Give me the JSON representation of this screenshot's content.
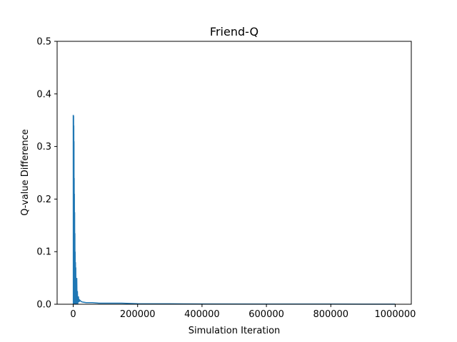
{
  "chart_data": {
    "type": "line",
    "title": "Friend-Q",
    "xlabel": "Simulation Iteration",
    "ylabel": "Q-value Difference",
    "xlim": [
      -50000,
      1050000
    ],
    "ylim": [
      0,
      0.5
    ],
    "grid": false,
    "color": "#1f77b4",
    "x_ticks": [
      0,
      200000,
      400000,
      600000,
      800000,
      1000000
    ],
    "x_tick_labels": [
      "0",
      "200000",
      "400000",
      "600000",
      "800000",
      "1000000"
    ],
    "y_ticks": [
      0.0,
      0.1,
      0.2,
      0.3,
      0.4,
      0.5
    ],
    "y_tick_labels": [
      "0.0",
      "0.1",
      "0.2",
      "0.3",
      "0.4",
      "0.5"
    ],
    "series": [
      {
        "values_note": "",
        "x": [
          0,
          300,
          600,
          900,
          1200,
          1500,
          1800,
          2100,
          2400,
          2700,
          3000,
          3300,
          3600,
          4000,
          4400,
          4800,
          5200,
          5600,
          6000,
          6500,
          7000,
          7500,
          8000,
          8500,
          9000,
          10000,
          11000,
          12000,
          13000,
          14000,
          16000,
          18000,
          20000,
          25000,
          30000,
          40000,
          60000,
          80000,
          100000,
          150000,
          200000,
          300000,
          400000,
          600000,
          800000,
          1000000
        ],
        "y": [
          0.36,
          0.0,
          0.36,
          0.0,
          0.358,
          0.0,
          0.34,
          0.0,
          0.31,
          0.0,
          0.24,
          0.0,
          0.21,
          0.0,
          0.175,
          0.0,
          0.135,
          0.0,
          0.1,
          0.0,
          0.08,
          0.0,
          0.07,
          0.0,
          0.05,
          0.0,
          0.05,
          0.0,
          0.025,
          0.0,
          0.015,
          0.004,
          0.008,
          0.005,
          0.004,
          0.003,
          0.003,
          0.002,
          0.002,
          0.002,
          0.001,
          0.0008,
          0.0005,
          0.0004,
          0.0003,
          0.0002
        ]
      }
    ]
  }
}
